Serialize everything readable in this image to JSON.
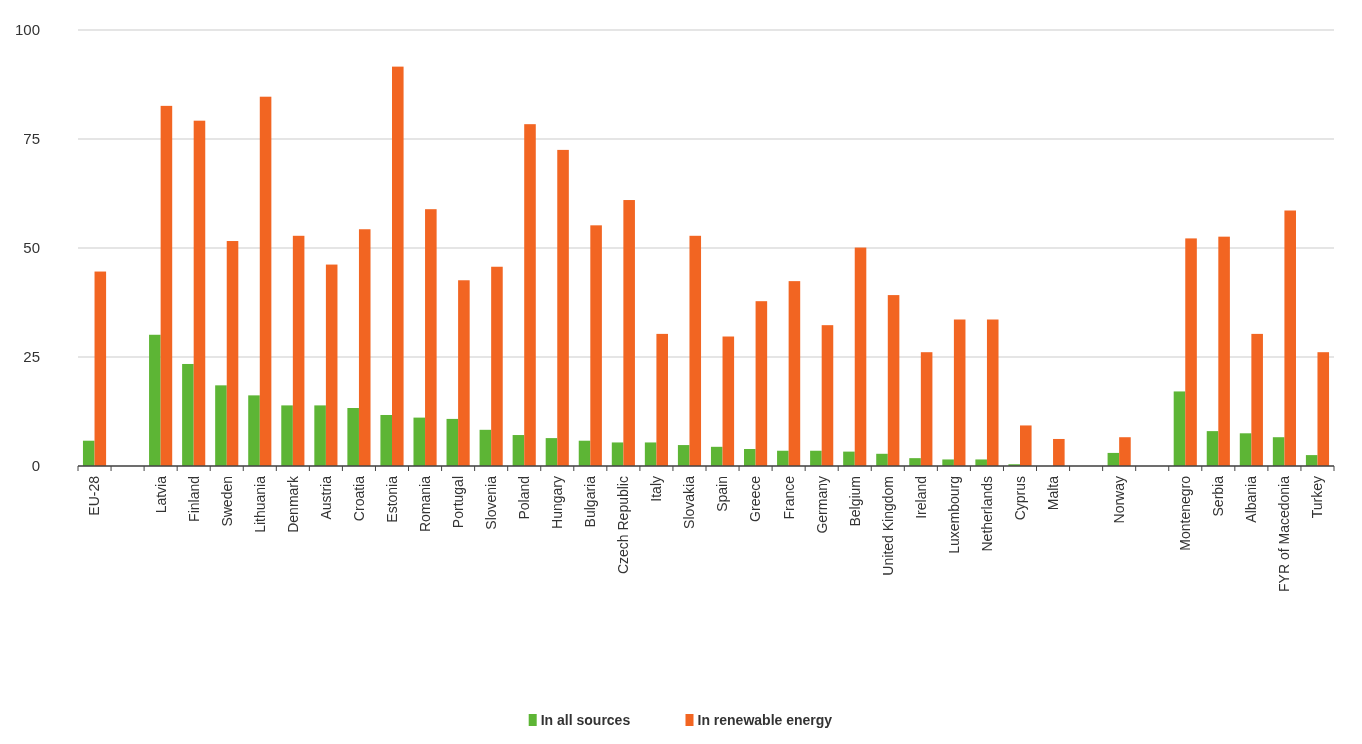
{
  "chart_data": {
    "type": "bar",
    "categories": [
      "EU-28",
      null,
      "Latvia",
      "Finland",
      "Sweden",
      "Lithuania",
      "Denmark",
      "Austria",
      "Croatia",
      "Estonia",
      "Romania",
      "Portugal",
      "Slovenia",
      "Poland",
      "Hungary",
      "Bulgaria",
      "Czech Republic",
      "Italy",
      "Slovakia",
      "Spain",
      "Greece",
      "France",
      "Germany",
      "Belgium",
      "United Kingdom",
      "Ireland",
      "Luxembourg",
      "Netherlands",
      "Cyprus",
      "Malta",
      null,
      "Norway",
      null,
      "Montenegro",
      "Serbia",
      "Albania",
      "FYR of Macedonia",
      "Turkey"
    ],
    "series": [
      {
        "name": "In all sources",
        "color": "#5db535",
        "values": [
          5.8,
          null,
          30.1,
          23.4,
          18.5,
          16.2,
          13.9,
          13.9,
          13.3,
          11.7,
          11.1,
          10.8,
          8.3,
          7.1,
          6.4,
          5.8,
          5.4,
          5.4,
          4.8,
          4.4,
          3.9,
          3.5,
          3.5,
          3.3,
          2.8,
          1.8,
          1.5,
          1.5,
          0.4,
          0,
          null,
          3.0,
          null,
          17.1,
          8.0,
          7.5,
          6.6,
          2.5
        ]
      },
      {
        "name": "In renewable energy",
        "color": "#f26522",
        "values": [
          44.6,
          null,
          82.6,
          79.2,
          51.6,
          84.7,
          52.8,
          46.2,
          54.3,
          91.6,
          58.9,
          42.6,
          45.7,
          78.4,
          72.5,
          55.2,
          61.0,
          30.3,
          52.8,
          29.7,
          37.8,
          42.4,
          32.3,
          50.1,
          39.2,
          26.1,
          33.6,
          33.6,
          9.3,
          6.2,
          null,
          6.6,
          null,
          52.2,
          52.6,
          30.3,
          58.6,
          26.1
        ]
      }
    ],
    "ylim": [
      0,
      100
    ],
    "yticks": [
      0,
      25,
      50,
      75,
      100
    ],
    "grid": "y",
    "legend": "bottom"
  }
}
